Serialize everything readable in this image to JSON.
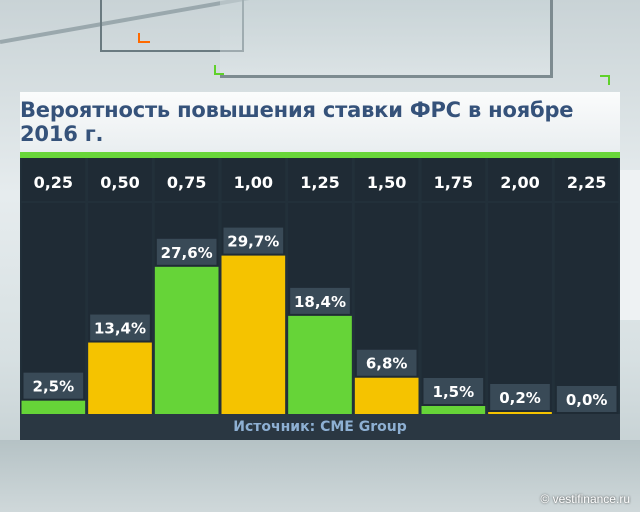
{
  "title": "Вероятность повышения ставки ФРС в ноябре 2016 г.",
  "source": "Источник: CME Group",
  "watermark": "© vestifinance.ru",
  "colors": {
    "green": "#66d438",
    "yellow": "#f5c300",
    "panel": "#22303a",
    "column": "#1f2b35",
    "label_box": "#394a57"
  },
  "chart_data": {
    "type": "bar",
    "title": "Вероятность повышения ставки ФРС в ноябре 2016 г.",
    "categories": [
      "0,25",
      "0,50",
      "0,75",
      "1,00",
      "1,25",
      "1,50",
      "1,75",
      "2,00",
      "2,25"
    ],
    "values": [
      2.5,
      13.4,
      27.6,
      29.7,
      18.4,
      6.8,
      1.5,
      0.2,
      0.0
    ],
    "value_labels": [
      "2,5%",
      "13,4%",
      "27,6%",
      "29,7%",
      "18,4%",
      "6,8%",
      "1,5%",
      "0,2%",
      "0,0%"
    ],
    "bar_colors": [
      "green",
      "yellow",
      "green",
      "yellow",
      "green",
      "yellow",
      "green",
      "yellow",
      "green"
    ],
    "ylim": [
      0,
      33
    ],
    "xlabel": "",
    "ylabel": "",
    "grid": false,
    "legend": "none"
  }
}
